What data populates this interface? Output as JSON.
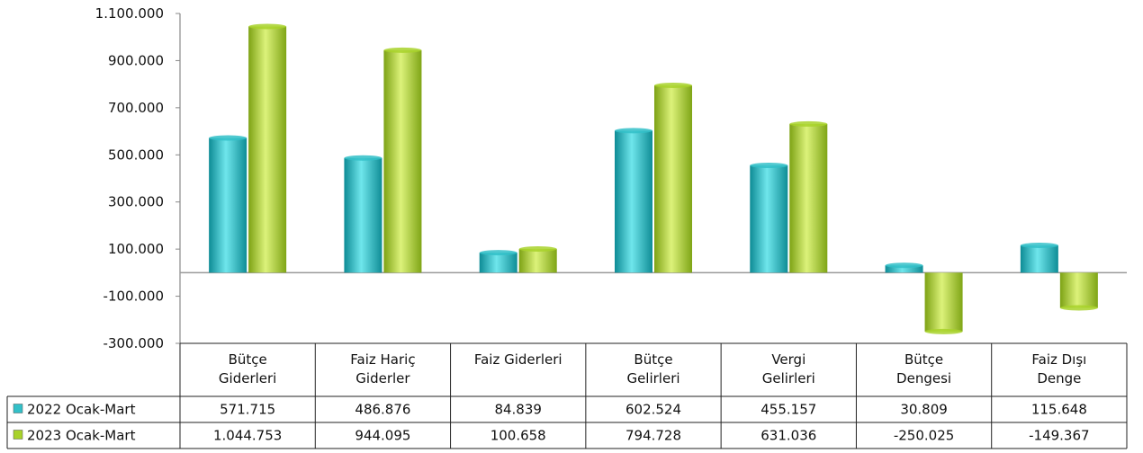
{
  "chart_data": {
    "type": "bar",
    "categories": [
      [
        "Bütçe",
        "Giderleri"
      ],
      [
        "Faiz Hariç",
        "Giderler"
      ],
      [
        "Faiz Giderleri"
      ],
      [
        "Bütçe",
        "Gelirleri"
      ],
      [
        "Vergi",
        "Gelirleri"
      ],
      [
        "Bütçe",
        "Dengesi"
      ],
      [
        "Faiz Dışı",
        "Denge"
      ]
    ],
    "series": [
      {
        "name": "2022 Ocak-Mart",
        "color": "#33c0c8",
        "values": [
          571715,
          486876,
          84839,
          602524,
          455157,
          30809,
          115648
        ],
        "labels": [
          "571.715",
          "486.876",
          "84.839",
          "602.524",
          "455.157",
          "30.809",
          "115.648"
        ]
      },
      {
        "name": "2023 Ocak-Mart",
        "color": "#a8d22a",
        "values": [
          1044753,
          944095,
          100658,
          794728,
          631036,
          -250025,
          -149367
        ],
        "labels": [
          "1.044.753",
          "944.095",
          "100.658",
          "794.728",
          "631.036",
          "-250.025",
          "-149.367"
        ]
      }
    ],
    "ylim": [
      -300000,
      1100000
    ],
    "yticks": [
      {
        "v": 1100000,
        "label": "1.100.000"
      },
      {
        "v": 900000,
        "label": "900.000"
      },
      {
        "v": 700000,
        "label": "700.000"
      },
      {
        "v": 500000,
        "label": "500.000"
      },
      {
        "v": 300000,
        "label": "300.000"
      },
      {
        "v": 100000,
        "label": "100.000"
      },
      {
        "v": -100000,
        "label": "-100.000"
      },
      {
        "v": -300000,
        "label": "-300.000"
      }
    ],
    "grid": false,
    "legend": "data-table"
  }
}
